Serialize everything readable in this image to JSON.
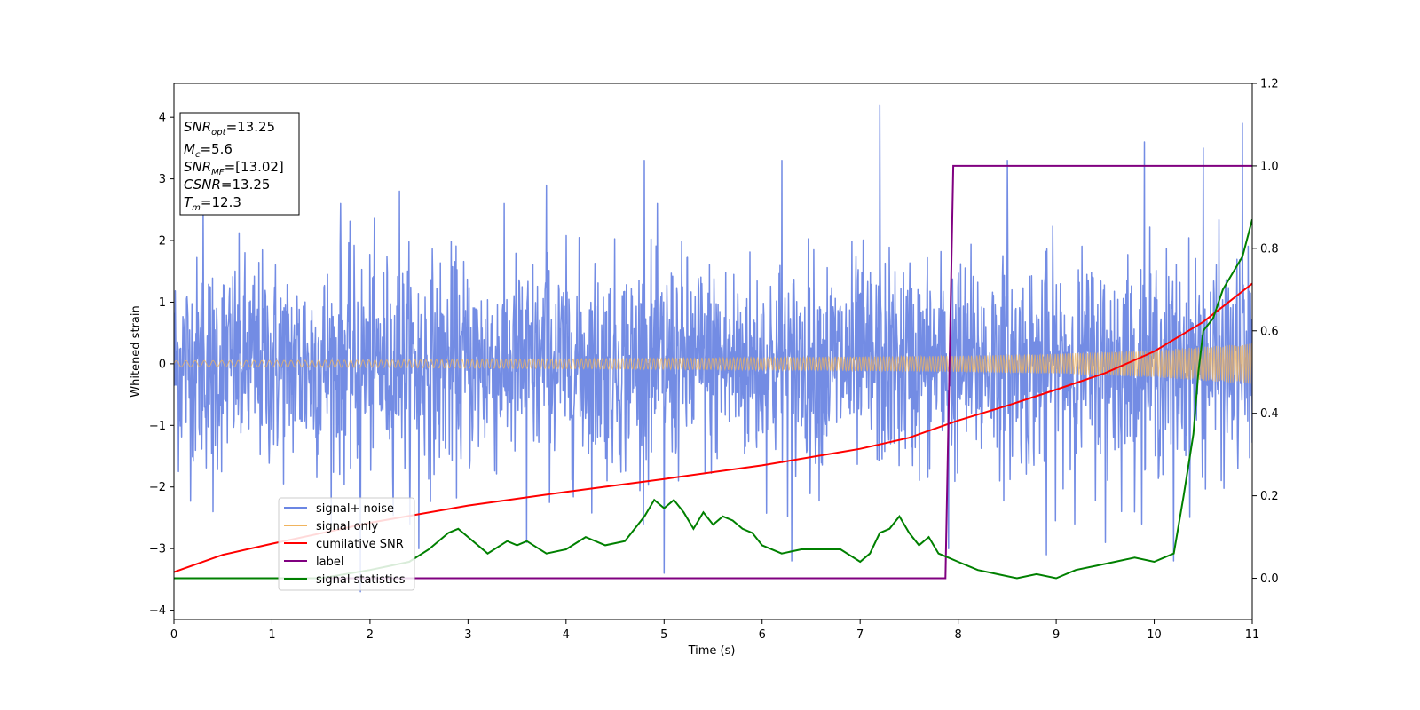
{
  "chart_data": {
    "type": "line",
    "xlabel": "Time (s)",
    "ylabel": "Whitened strain",
    "xlim": [
      0,
      11
    ],
    "ylim_left": [
      -4.15,
      4.55
    ],
    "ylim_right": [
      -0.1,
      1.2
    ],
    "xticks": [
      "0",
      "1",
      "2",
      "3",
      "4",
      "5",
      "6",
      "7",
      "8",
      "9",
      "10",
      "11"
    ],
    "yticks_left": [
      "−4",
      "−3",
      "−2",
      "−1",
      "0",
      "1",
      "2",
      "3",
      "4"
    ],
    "yticks_right": [
      "0.0",
      "0.2",
      "0.4",
      "0.6",
      "0.8",
      "1.0",
      "1.2"
    ],
    "legend_position": "lower-left",
    "colors": {
      "noise": "#6b86e3",
      "signal": "#f0b45e",
      "snr": "#ff0000",
      "label": "#800080",
      "stats": "#008000"
    },
    "annotation": {
      "snr_opt": "=13.25",
      "mc": "=5.6",
      "snr_mf": "=[13.02]",
      "csnr": "=13.25",
      "tm": "=12.3"
    },
    "series": [
      {
        "name": "signal+ noise",
        "axis": "left",
        "note": "dense noisy strain, roughly -2.5..2.5 with spikes",
        "peaks": [
          [
            0.3,
            2.6
          ],
          [
            1.7,
            2.6
          ],
          [
            2.3,
            2.8
          ],
          [
            3.8,
            2.9
          ],
          [
            4.8,
            3.3
          ],
          [
            5.0,
            3.0
          ],
          [
            6.2,
            3.3
          ],
          [
            7.2,
            4.2
          ],
          [
            8.5,
            3.3
          ],
          [
            9.9,
            3.6
          ],
          [
            10.5,
            3.5
          ],
          [
            10.9,
            3.9
          ]
        ],
        "troughs": [
          [
            0.4,
            -2.4
          ],
          [
            1.9,
            -3.7
          ],
          [
            2.5,
            -3.0
          ],
          [
            3.6,
            -2.9
          ],
          [
            5.0,
            -3.4
          ],
          [
            6.3,
            -3.2
          ],
          [
            7.9,
            -3.0
          ],
          [
            8.9,
            -3.1
          ],
          [
            9.5,
            -2.9
          ],
          [
            10.2,
            -3.2
          ]
        ]
      },
      {
        "name": "signal only",
        "axis": "left",
        "amplitude_envelope": [
          [
            0,
            0.05
          ],
          [
            2,
            0.06
          ],
          [
            4,
            0.08
          ],
          [
            6,
            0.1
          ],
          [
            8,
            0.13
          ],
          [
            9,
            0.16
          ],
          [
            10,
            0.22
          ],
          [
            11,
            0.33
          ]
        ]
      },
      {
        "name": "cumilative SNR",
        "axis": "left",
        "x": [
          0,
          0.5,
          1,
          1.5,
          2,
          3,
          4,
          5,
          6,
          7,
          7.5,
          8,
          8.5,
          9,
          9.5,
          10,
          10.5,
          11
        ],
        "y": [
          -3.38,
          -3.1,
          -2.92,
          -2.75,
          -2.58,
          -2.3,
          -2.08,
          -1.87,
          -1.65,
          -1.38,
          -1.2,
          -0.92,
          -0.68,
          -0.42,
          -0.15,
          0.2,
          0.68,
          1.3
        ]
      },
      {
        "name": "label",
        "axis": "right",
        "x": [
          0,
          7.87,
          7.95,
          11
        ],
        "y": [
          0,
          0,
          1,
          1
        ]
      },
      {
        "name": "signal statistics",
        "axis": "right",
        "x": [
          0,
          0.5,
          1,
          1.5,
          2,
          2.2,
          2.4,
          2.6,
          2.8,
          2.9,
          3.0,
          3.2,
          3.4,
          3.5,
          3.6,
          3.8,
          4.0,
          4.2,
          4.4,
          4.6,
          4.8,
          4.9,
          5.0,
          5.1,
          5.2,
          5.3,
          5.4,
          5.5,
          5.6,
          5.7,
          5.8,
          5.9,
          6.0,
          6.2,
          6.4,
          6.6,
          6.8,
          7.0,
          7.1,
          7.2,
          7.3,
          7.4,
          7.5,
          7.6,
          7.7,
          7.8,
          7.9,
          8.0,
          8.2,
          8.4,
          8.6,
          8.8,
          9.0,
          9.2,
          9.4,
          9.6,
          9.8,
          10.0,
          10.1,
          10.2,
          10.3,
          10.4,
          10.45,
          10.5,
          10.6,
          10.7,
          10.8,
          10.9,
          11.0
        ],
        "y": [
          0,
          0,
          0,
          0,
          0.02,
          0.03,
          0.04,
          0.07,
          0.11,
          0.12,
          0.1,
          0.06,
          0.09,
          0.08,
          0.09,
          0.06,
          0.07,
          0.1,
          0.08,
          0.09,
          0.15,
          0.19,
          0.17,
          0.19,
          0.16,
          0.12,
          0.16,
          0.13,
          0.15,
          0.14,
          0.12,
          0.11,
          0.08,
          0.06,
          0.07,
          0.07,
          0.07,
          0.04,
          0.06,
          0.11,
          0.12,
          0.15,
          0.11,
          0.08,
          0.1,
          0.06,
          0.05,
          0.04,
          0.02,
          0.01,
          0.0,
          0.01,
          0.0,
          0.02,
          0.03,
          0.04,
          0.05,
          0.04,
          0.05,
          0.06,
          0.2,
          0.35,
          0.5,
          0.6,
          0.63,
          0.7,
          0.74,
          0.78,
          0.87
        ]
      }
    ]
  }
}
